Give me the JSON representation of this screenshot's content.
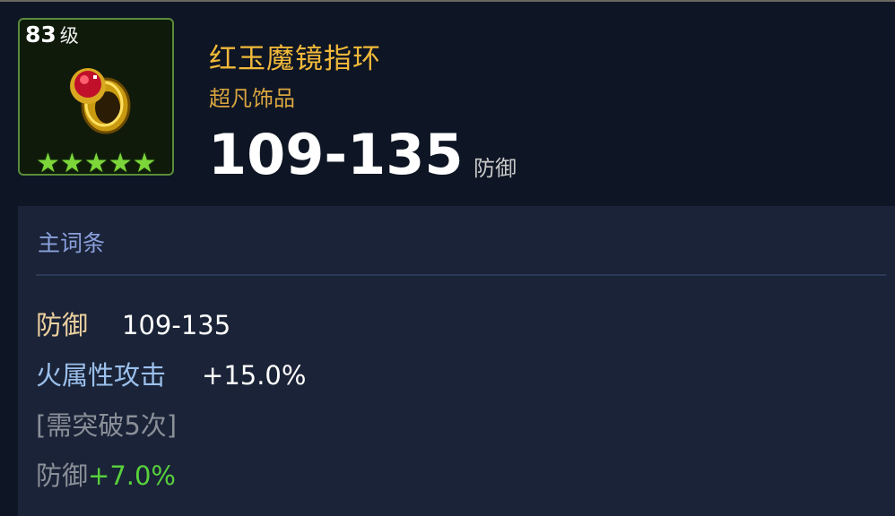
{
  "item": {
    "level_number": "83",
    "level_suffix": "级",
    "stars": 5,
    "name": "红玉魔镜指环",
    "rarity": "超凡饰品",
    "main_value": "109-135",
    "main_unit": "防御",
    "icon": "ruby-ring-icon",
    "colors": {
      "name": "#f0b93a",
      "star": "#7cd63a",
      "bonus": "#58d03c"
    }
  },
  "panel": {
    "title": "主词条",
    "rows": [
      {
        "label": "防御",
        "value": "109-135"
      },
      {
        "label": "火属性攻击",
        "value": "+15.0%"
      },
      {
        "label": "[需突破5次]"
      },
      {
        "label": "防御",
        "value": "+7.0%"
      }
    ]
  }
}
